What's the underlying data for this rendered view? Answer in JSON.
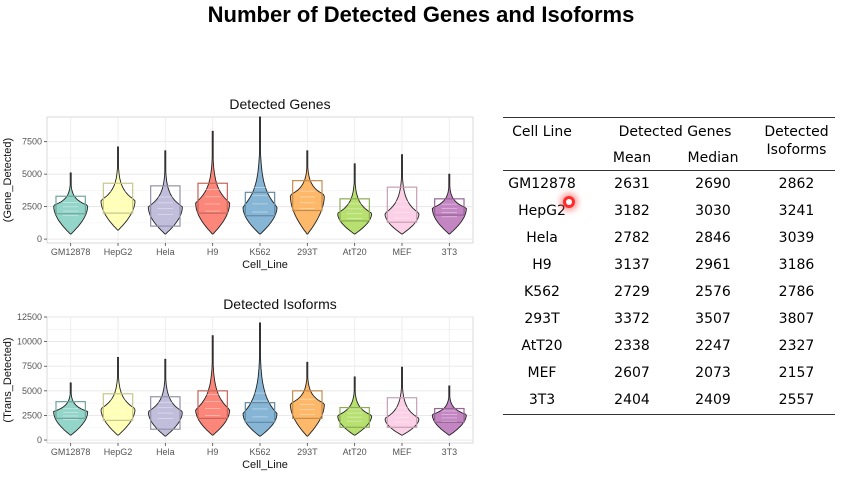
{
  "title": "Number of Detected Genes and Isoforms",
  "colors": {
    "GM12878": "#8ed3c7",
    "HepG2": "#ffffb3",
    "Hela": "#bebada",
    "H9": "#fb8072",
    "K562": "#80b1d3",
    "293T": "#fdb462",
    "AtT20": "#b3de69",
    "MEF": "#fccde5",
    "3T3": "#c07fbf"
  },
  "chart_data": [
    {
      "id": "genes",
      "type": "violin",
      "title": "Detected Genes",
      "xlabel": "Cell_Line",
      "ylabel": "(Gene_Detected)",
      "ylim": [
        -300,
        9400
      ],
      "yticks": [
        0,
        2500,
        5000,
        7500
      ],
      "ytick_labels": [
        "0",
        "2500",
        "5000",
        "7500"
      ],
      "categories": [
        "GM12878",
        "HepG2",
        "Hela",
        "H9",
        "K562",
        "293T",
        "AtT20",
        "MEF",
        "3T3"
      ],
      "box_q1": [
        1950,
        2000,
        1000,
        2000,
        1800,
        2200,
        1400,
        1300,
        1850
      ],
      "box_q3": [
        3300,
        4300,
        4100,
        4300,
        3600,
        4500,
        3100,
        4000,
        3100
      ],
      "min": [
        400,
        700,
        400,
        400,
        400,
        400,
        400,
        400,
        400
      ],
      "max": [
        5100,
        7100,
        6800,
        8300,
        9400,
        6800,
        5800,
        6500,
        5000
      ],
      "mode": [
        2600,
        3000,
        2500,
        2800,
        2500,
        3400,
        2000,
        2000,
        2400
      ]
    },
    {
      "id": "isoforms",
      "type": "violin",
      "title": "Detected Isoforms",
      "xlabel": "Cell_Line",
      "ylabel": "(Trans_Detected)",
      "ylim": [
        -300,
        12500
      ],
      "yticks": [
        0,
        2500,
        5000,
        7500,
        10000,
        12500
      ],
      "ytick_labels": [
        "0",
        "2500",
        "5000",
        "7500",
        "10000",
        "12500"
      ],
      "categories": [
        "GM12878",
        "HepG2",
        "Hela",
        "H9",
        "K562",
        "293T",
        "AtT20",
        "MEF",
        "3T3"
      ],
      "box_q1": [
        2200,
        2000,
        1100,
        2200,
        1800,
        2200,
        1300,
        1300,
        1800
      ],
      "box_q3": [
        3900,
        4700,
        4400,
        5000,
        3800,
        5000,
        3300,
        4300,
        3200
      ],
      "min": [
        500,
        500,
        400,
        500,
        400,
        400,
        500,
        500,
        500
      ],
      "max": [
        5800,
        8400,
        8200,
        10600,
        11900,
        7900,
        6400,
        7400,
        5500
      ],
      "mode": [
        2900,
        3200,
        2900,
        3100,
        2700,
        3700,
        2500,
        2200,
        2600
      ]
    }
  ],
  "table": {
    "headers": {
      "cell_line": "Cell Line",
      "detected_genes": "Detected Genes",
      "mean": "Mean",
      "median": "Median",
      "detected_isoforms_1": "Detected",
      "detected_isoforms_2": "Isoforms"
    },
    "rows": [
      {
        "cell_line": "GM12878",
        "mean": "2631",
        "median": "2690",
        "isoforms": "2862"
      },
      {
        "cell_line": "HepG2",
        "mean": "3182",
        "median": "3030",
        "isoforms": "3241"
      },
      {
        "cell_line": "Hela",
        "mean": "2782",
        "median": "2846",
        "isoforms": "3039"
      },
      {
        "cell_line": "H9",
        "mean": "3137",
        "median": "2961",
        "isoforms": "3186"
      },
      {
        "cell_line": "K562",
        "mean": "2729",
        "median": "2576",
        "isoforms": "2786"
      },
      {
        "cell_line": "293T",
        "mean": "3372",
        "median": "3507",
        "isoforms": "3807"
      },
      {
        "cell_line": "AtT20",
        "mean": "2338",
        "median": "2247",
        "isoforms": "2327"
      },
      {
        "cell_line": "MEF",
        "mean": "2607",
        "median": "2073",
        "isoforms": "2157"
      },
      {
        "cell_line": "3T3",
        "mean": "2404",
        "median": "2409",
        "isoforms": "2557"
      }
    ]
  }
}
